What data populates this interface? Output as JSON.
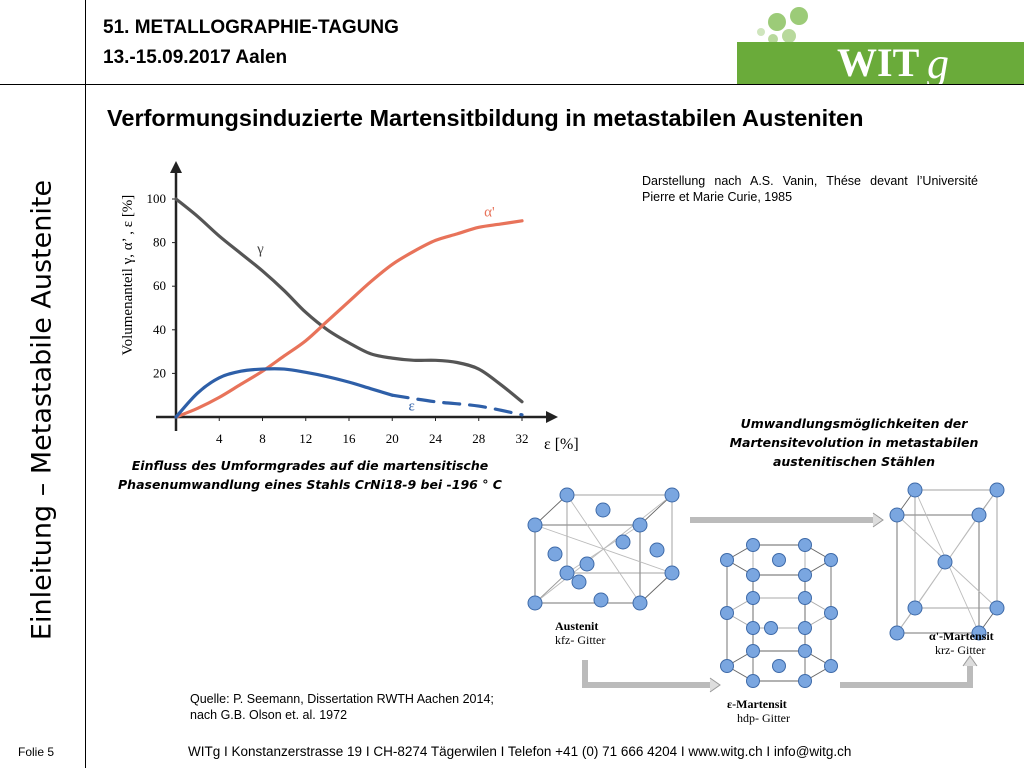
{
  "header": {
    "conference": "51. METALLOGRAPHIE-TAGUNG",
    "dates": "13.-15.09.2017  Aalen",
    "logo_text": "WIT",
    "logo_suffix": "g",
    "colors": {
      "logo_green": "#6aab3a",
      "logo_light": "#9ccb78"
    }
  },
  "side_title": "Einleitung – Metastabile Austenite",
  "main_title": "Verformungsinduzierte Martensitbildung in metastabilen Austeniten",
  "credit": "Darstellung nach A.S. Vanin, Thése devant l’Université Pierre et Marie Curie, 1985",
  "chart_caption_line1": "Einfluss des Umformgrades auf die martensitische",
  "chart_caption_line2": "Phasenumwandlung eines Stahls CrNi18-9 bei -196 ° C",
  "lattice_caption_line1": "Umwandlungsmöglichkeiten der",
  "lattice_caption_line2": "Martensitevolution in metastabilen",
  "lattice_caption_line3": "austenitischen Stählen",
  "source_line1": "Quelle: P. Seemann, Dissertation RWTH Aachen  2014;",
  "source_line2": "nach G.B. Olson et. al. 1972",
  "lattices": {
    "austenit_name": "Austenit",
    "austenit_type": "kfz- Gitter",
    "epsilon_name": "ε-Martensit",
    "epsilon_type": "hdp- Gitter",
    "alpha_name": "α'-Martensit",
    "alpha_type": "krz- Gitter"
  },
  "footer": {
    "slide": "Folie 5",
    "text": "WITg   I   Konstanzerstrasse 19   I   CH-8274 Tägerwilen   I   Telefon +41 (0) 71 666 4204   I   www.witg.ch   I   info@witg.ch"
  },
  "chart_data": {
    "type": "line",
    "xlabel": "ε [%]",
    "ylabel": "Volumenanteil γ, α’ , ε [%]",
    "xlim": [
      0,
      32
    ],
    "ylim": [
      0,
      100
    ],
    "x_ticks": [
      4,
      8,
      12,
      16,
      20,
      24,
      28,
      32
    ],
    "y_ticks": [
      20,
      40,
      60,
      80,
      100
    ],
    "grid": false,
    "colors": {
      "gamma": "#555555",
      "alpha": "#e8735a",
      "epsilon": "#2e5fa8"
    },
    "series": [
      {
        "name": "γ",
        "x": [
          0,
          2,
          4,
          6,
          8,
          10,
          12,
          14,
          16,
          18,
          20,
          22,
          24,
          26,
          28,
          30,
          32
        ],
        "values": [
          100,
          92,
          83,
          75,
          67,
          58,
          48,
          40,
          34,
          29,
          27,
          26,
          26,
          25,
          22,
          15,
          7
        ]
      },
      {
        "name": "α'",
        "x": [
          0,
          2,
          4,
          6,
          8,
          10,
          12,
          14,
          16,
          18,
          20,
          22,
          24,
          26,
          28,
          30,
          32
        ],
        "values": [
          0,
          4,
          9,
          15,
          21,
          28,
          35,
          44,
          53,
          62,
          70,
          76,
          81,
          84,
          87,
          88.5,
          90
        ]
      },
      {
        "name": "ε",
        "x": [
          0,
          2,
          4,
          6,
          8,
          10,
          12,
          14,
          16,
          18,
          20
        ],
        "values": [
          0,
          11,
          18,
          21,
          22,
          22,
          20.5,
          18.5,
          16,
          13,
          10
        ]
      },
      {
        "name": "ε",
        "dashed": true,
        "x": [
          20,
          24,
          28,
          32
        ],
        "values": [
          10,
          7,
          5,
          1
        ]
      }
    ]
  }
}
